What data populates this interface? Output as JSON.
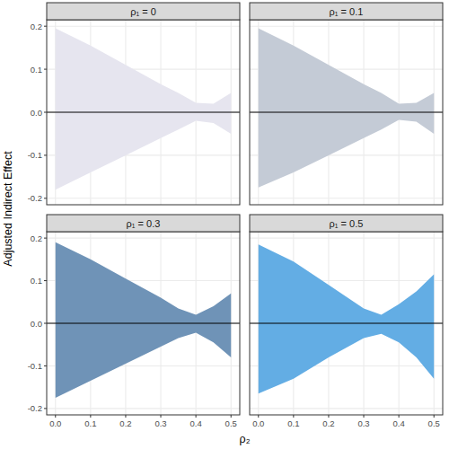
{
  "figure": {
    "x_label": "ρ₂",
    "y_label": "Adjusted Indirect Effect"
  },
  "chart_data": [
    {
      "type": "area",
      "title": "ρ₁ = 0",
      "color": "#e6e5ef",
      "x": [
        0,
        0.1,
        0.2,
        0.3,
        0.35,
        0.4,
        0.45,
        0.5
      ],
      "upper": [
        0.195,
        0.155,
        0.11,
        0.065,
        0.045,
        0.022,
        0.02,
        0.045
      ],
      "lower": [
        -0.18,
        -0.14,
        -0.1,
        -0.06,
        -0.04,
        -0.02,
        -0.025,
        -0.05
      ],
      "hline": 0,
      "xlim": [
        -0.025,
        0.525
      ],
      "ylim": [
        -0.215,
        0.215
      ],
      "xticks": [
        {
          "value": 0,
          "label": "0.0"
        },
        0.1,
        0.2,
        0.3,
        0.4,
        0.5
      ],
      "yticks": [
        -0.2,
        -0.1,
        {
          "value": 0,
          "label": "0.0"
        },
        0.1,
        0.2
      ],
      "grid": true,
      "tick_labels": "y"
    },
    {
      "type": "area",
      "title": "ρ₁ = 0.1",
      "color": "#c4cbd6",
      "x": [
        0,
        0.1,
        0.2,
        0.3,
        0.35,
        0.4,
        0.45,
        0.5
      ],
      "upper": [
        0.195,
        0.155,
        0.11,
        0.065,
        0.045,
        0.02,
        0.022,
        0.045
      ],
      "lower": [
        -0.175,
        -0.14,
        -0.1,
        -0.06,
        -0.04,
        -0.018,
        -0.022,
        -0.05
      ],
      "hline": 0,
      "xlim": [
        -0.025,
        0.525
      ],
      "ylim": [
        -0.215,
        0.215
      ],
      "xticks": [
        {
          "value": 0,
          "label": "0.0"
        },
        0.1,
        0.2,
        0.3,
        0.4,
        0.5
      ],
      "yticks": [
        -0.2,
        -0.1,
        {
          "value": 0,
          "label": "0.0"
        },
        0.1,
        0.2
      ],
      "grid": true,
      "tick_labels": false
    },
    {
      "type": "area",
      "title": "ρ₁ = 0.3",
      "color": "#6f93b7",
      "x": [
        0,
        0.1,
        0.2,
        0.3,
        0.35,
        0.4,
        0.45,
        0.5
      ],
      "upper": [
        0.19,
        0.15,
        0.105,
        0.06,
        0.035,
        0.02,
        0.04,
        0.07
      ],
      "lower": [
        -0.175,
        -0.135,
        -0.095,
        -0.055,
        -0.035,
        -0.022,
        -0.045,
        -0.08
      ],
      "hline": 0,
      "xlim": [
        -0.025,
        0.525
      ],
      "ylim": [
        -0.215,
        0.215
      ],
      "xticks": [
        {
          "value": 0,
          "label": "0.0"
        },
        0.1,
        0.2,
        0.3,
        0.4,
        0.5
      ],
      "yticks": [
        -0.2,
        -0.1,
        {
          "value": 0,
          "label": "0.0"
        },
        0.1,
        0.2
      ],
      "grid": true,
      "tick_labels": true
    },
    {
      "type": "area",
      "title": "ρ₁ = 0.5",
      "color": "#63ade4",
      "x": [
        0,
        0.1,
        0.2,
        0.3,
        0.35,
        0.4,
        0.45,
        0.5
      ],
      "upper": [
        0.185,
        0.145,
        0.09,
        0.035,
        0.02,
        0.045,
        0.075,
        0.115
      ],
      "lower": [
        -0.165,
        -0.13,
        -0.08,
        -0.035,
        -0.025,
        -0.045,
        -0.08,
        -0.13
      ],
      "hline": 0,
      "xlim": [
        -0.025,
        0.525
      ],
      "ylim": [
        -0.215,
        0.215
      ],
      "xticks": [
        {
          "value": 0,
          "label": "0.0"
        },
        0.1,
        0.2,
        0.3,
        0.4,
        0.5
      ],
      "yticks": [
        -0.2,
        -0.1,
        {
          "value": 0,
          "label": "0.0"
        },
        0.1,
        0.2
      ],
      "grid": true,
      "tick_labels": "x"
    }
  ]
}
